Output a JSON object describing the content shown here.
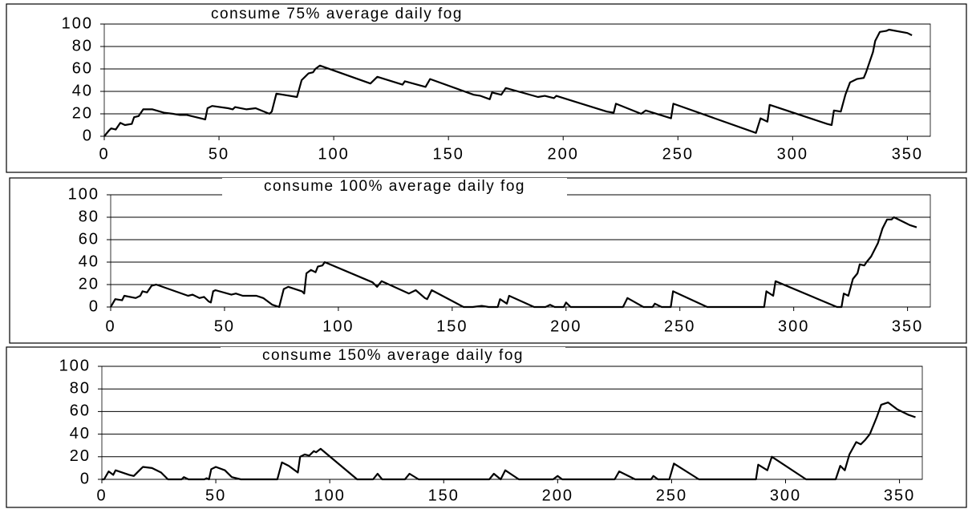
{
  "chart_data": [
    {
      "type": "line",
      "title": "consume 75% average daily fog",
      "x": [
        0,
        2,
        3,
        5,
        7,
        9,
        12,
        13,
        15,
        17,
        21,
        26,
        30,
        33,
        36,
        40,
        44,
        45,
        47,
        54,
        56,
        57,
        62,
        66,
        72,
        73,
        75,
        84,
        86,
        89,
        91,
        92,
        94,
        116,
        119,
        130,
        131,
        140,
        142,
        161,
        164,
        168,
        169,
        173,
        175,
        189,
        192,
        196,
        197,
        219,
        222,
        223,
        234,
        236,
        247,
        248,
        284,
        286,
        289,
        290,
        315,
        317,
        318,
        321,
        323,
        325,
        328,
        331,
        332,
        335,
        336,
        338,
        341,
        342,
        350,
        352
      ],
      "values": [
        0,
        5,
        7,
        6,
        12,
        10,
        11,
        17,
        18,
        24,
        24,
        21,
        20,
        19,
        19,
        17,
        15,
        25,
        27,
        25,
        24,
        26,
        24,
        25,
        20,
        22,
        38,
        35,
        50,
        56,
        57,
        60,
        63,
        47,
        53,
        46,
        49,
        44,
        51,
        37,
        36,
        33,
        39,
        37,
        43,
        35,
        36,
        34,
        36,
        22,
        21,
        29,
        20,
        23,
        16,
        29,
        3,
        16,
        13,
        28,
        11,
        10,
        23,
        22,
        37,
        48,
        51,
        52,
        57,
        75,
        85,
        93,
        94,
        95,
        92,
        90
      ],
      "color": "#000000",
      "xlim": [
        0,
        360
      ],
      "ylim": [
        0,
        100
      ],
      "xticks": [
        0,
        50,
        100,
        150,
        200,
        250,
        300,
        350
      ],
      "yticks": [
        0,
        20,
        40,
        60,
        80,
        100
      ],
      "grid": true
    },
    {
      "type": "line",
      "title": "consume 100% average daily fog",
      "x": [
        0,
        2,
        5,
        6,
        11,
        13,
        14,
        16,
        18,
        20,
        34,
        36,
        39,
        41,
        43,
        44,
        45,
        46,
        53,
        55,
        58,
        64,
        67,
        71,
        74,
        76,
        78,
        84,
        85,
        86,
        88,
        90,
        91,
        93,
        94,
        115,
        117,
        119,
        131,
        134,
        138,
        139,
        141,
        155,
        159,
        163,
        166,
        170,
        171,
        174,
        175,
        186,
        191,
        193,
        195,
        199,
        200,
        202,
        225,
        227,
        234,
        238,
        239,
        242,
        246,
        247,
        262,
        287,
        288,
        291,
        292,
        319,
        321,
        322,
        324,
        326,
        328,
        329,
        331,
        332,
        334,
        337,
        339,
        341,
        343,
        344,
        349,
        351,
        354
      ],
      "values": [
        0,
        7,
        6,
        10,
        8,
        10,
        14,
        13,
        19,
        20,
        10,
        11,
        8,
        9,
        5,
        4,
        14,
        15,
        11,
        12,
        10,
        10,
        8,
        2,
        0,
        16,
        18,
        14,
        12,
        30,
        33,
        31,
        36,
        37,
        40,
        22,
        18,
        23,
        12,
        15,
        8,
        7,
        15,
        0,
        0,
        1,
        0,
        0,
        7,
        3,
        10,
        0,
        0,
        2,
        0,
        0,
        4,
        0,
        0,
        8,
        0,
        0,
        3,
        0,
        0,
        14,
        0,
        0,
        14,
        10,
        23,
        0,
        0,
        12,
        10,
        25,
        30,
        38,
        37,
        40,
        45,
        57,
        70,
        78,
        78,
        80,
        75,
        73,
        71
      ],
      "color": "#000000",
      "xlim": [
        0,
        360
      ],
      "ylim": [
        0,
        100
      ],
      "xticks": [
        0,
        50,
        100,
        150,
        200,
        250,
        300,
        350
      ],
      "yticks": [
        0,
        20,
        40,
        60,
        80,
        100
      ],
      "grid": true
    },
    {
      "type": "line",
      "title": "consume 150% average daily fog",
      "x": [
        0,
        1,
        3,
        5,
        6,
        12,
        14,
        17,
        18,
        22,
        26,
        29,
        35,
        36,
        38,
        45,
        46,
        47,
        48,
        50,
        54,
        57,
        61,
        77,
        79,
        82,
        86,
        87,
        89,
        91,
        93,
        94,
        96,
        99,
        112,
        119,
        121,
        123,
        133,
        135,
        139,
        170,
        172,
        175,
        177,
        183,
        198,
        200,
        202,
        225,
        227,
        234,
        241,
        242,
        244,
        249,
        251,
        262,
        287,
        288,
        292,
        294,
        309,
        322,
        324,
        326,
        328,
        331,
        333,
        335,
        337,
        340,
        342,
        345,
        349,
        354,
        357
      ],
      "values": [
        0,
        0,
        7,
        4,
        8,
        4,
        3,
        9,
        11,
        10,
        6,
        0,
        0,
        2,
        0,
        0,
        1,
        0,
        9,
        11,
        8,
        2,
        0,
        0,
        15,
        12,
        6,
        20,
        22,
        21,
        25,
        24,
        27,
        22,
        0,
        0,
        5,
        0,
        0,
        5,
        0,
        0,
        5,
        0,
        8,
        0,
        0,
        3,
        0,
        0,
        7,
        0,
        0,
        3,
        0,
        0,
        14,
        0,
        0,
        13,
        8,
        20,
        0,
        0,
        12,
        8,
        22,
        33,
        31,
        35,
        40,
        55,
        66,
        68,
        62,
        57,
        55
      ],
      "color": "#000000",
      "xlim": [
        0,
        360
      ],
      "ylim": [
        0,
        100
      ],
      "xticks": [
        0,
        50,
        100,
        150,
        200,
        250,
        300,
        350
      ],
      "yticks": [
        0,
        20,
        40,
        60,
        80,
        100
      ],
      "grid": true
    }
  ]
}
